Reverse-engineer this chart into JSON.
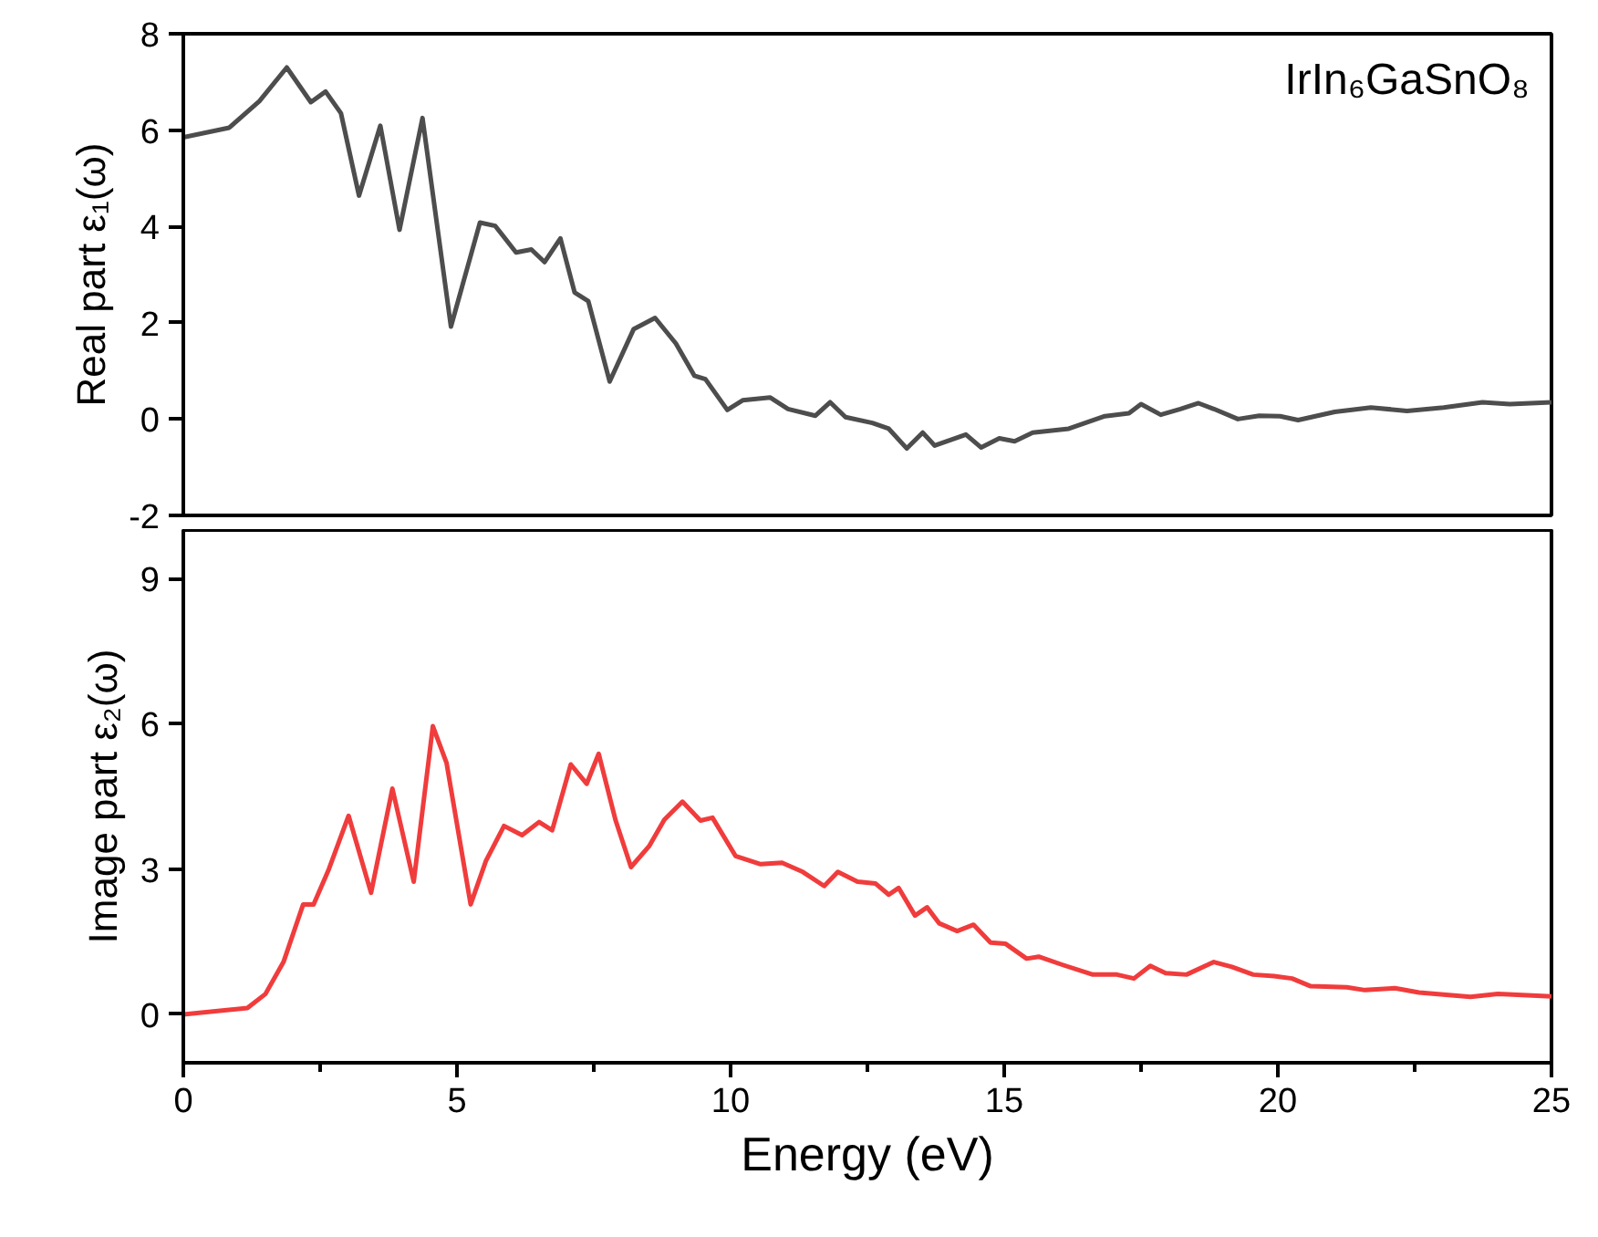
{
  "chart_data": [
    {
      "type": "line",
      "ylabel": "Real part ε₁(ω)",
      "annotations": [
        "IrIn₆GaSnO₈"
      ],
      "xlim": [
        0,
        25
      ],
      "xticks": [
        0,
        5,
        10,
        15,
        20,
        25
      ],
      "ylim": [
        -2,
        8
      ],
      "yticks": [
        -2,
        0,
        2,
        4,
        6,
        8
      ],
      "tick_labels": "y",
      "grid": false,
      "series": [
        {
          "color": "#4d4d4d",
          "x": [
            0,
            0.84,
            1.39,
            1.89,
            2.33,
            2.6,
            2.88,
            3.21,
            3.6,
            3.95,
            4.37,
            4.89,
            5.42,
            5.7,
            6.08,
            6.36,
            6.6,
            6.89,
            7.15,
            7.4,
            7.79,
            8.23,
            8.62,
            9.0,
            9.34,
            9.54,
            9.94,
            10.22,
            10.72,
            11.05,
            11.55,
            11.82,
            12.1,
            12.59,
            12.89,
            13.22,
            13.51,
            13.73,
            14.3,
            14.58,
            14.91,
            15.19,
            15.52,
            16.18,
            16.84,
            17.28,
            17.5,
            17.86,
            18.22,
            18.55,
            18.83,
            19.27,
            19.66,
            20.04,
            20.37,
            21.04,
            21.7,
            22.36,
            23.03,
            23.74,
            24.24,
            25
          ],
          "values": [
            5.85,
            6.05,
            6.6,
            7.3,
            6.58,
            6.8,
            6.35,
            4.64,
            6.09,
            3.93,
            6.25,
            1.92,
            4.08,
            4.01,
            3.46,
            3.52,
            3.26,
            3.75,
            2.63,
            2.45,
            0.78,
            1.87,
            2.1,
            1.57,
            0.9,
            0.83,
            0.19,
            0.39,
            0.45,
            0.21,
            0.07,
            0.35,
            0.04,
            -0.08,
            -0.2,
            -0.61,
            -0.28,
            -0.55,
            -0.32,
            -0.59,
            -0.4,
            -0.46,
            -0.28,
            -0.2,
            0.06,
            0.12,
            0.31,
            0.09,
            0.21,
            0.33,
            0.21,
            0,
            0.07,
            0.06,
            -0.02,
            0.15,
            0.24,
            0.17,
            0.24,
            0.35,
            0.31,
            0.35
          ]
        }
      ]
    },
    {
      "type": "line",
      "xlabel": "Energy (eV)",
      "ylabel": "Image part ε₂(ω)",
      "xlim": [
        0,
        25
      ],
      "xticks": [
        0,
        5,
        10,
        15,
        20,
        25
      ],
      "ylim": [
        -1,
        10
      ],
      "yticks": [
        0,
        3,
        6,
        9
      ],
      "grid": false,
      "series": [
        {
          "color": "#f03c3c",
          "x": [
            0,
            1.17,
            1.5,
            1.83,
            2.19,
            2.38,
            2.66,
            3.02,
            3.43,
            3.82,
            4.21,
            4.56,
            4.81,
            5.25,
            5.53,
            5.86,
            6.19,
            6.5,
            6.74,
            7.08,
            7.37,
            7.59,
            7.9,
            8.18,
            8.51,
            8.79,
            9.12,
            9.45,
            9.67,
            10.09,
            10.55,
            10.94,
            11.32,
            11.71,
            11.96,
            12.32,
            12.65,
            12.89,
            13.07,
            13.37,
            13.59,
            13.81,
            14.14,
            14.44,
            14.75,
            15.02,
            15.41,
            15.63,
            16.07,
            16.62,
            17.06,
            17.37,
            17.67,
            17.95,
            18.33,
            18.83,
            19.16,
            19.55,
            19.93,
            20.26,
            20.6,
            21.26,
            21.59,
            22.14,
            22.58,
            23.52,
            24.02,
            25
          ],
          "values": [
            0,
            0.13,
            0.42,
            1.08,
            2.27,
            2.27,
            3.0,
            4.1,
            2.51,
            4.66,
            2.74,
            5.95,
            5.19,
            2.27,
            3.17,
            3.89,
            3.7,
            3.97,
            3.8,
            5.16,
            4.76,
            5.38,
            4.0,
            3.04,
            3.47,
            4.02,
            4.39,
            4.0,
            4.06,
            3.27,
            3.1,
            3.13,
            2.94,
            2.65,
            2.94,
            2.74,
            2.7,
            2.47,
            2.61,
            2.04,
            2.21,
            1.88,
            1.72,
            1.85,
            1.48,
            1.46,
            1.15,
            1.19,
            1.02,
            0.82,
            0.82,
            0.74,
            1.0,
            0.85,
            0.82,
            1.08,
            0.98,
            0.82,
            0.79,
            0.74,
            0.58,
            0.56,
            0.5,
            0.54,
            0.45,
            0.36,
            0.42,
            0.37
          ]
        }
      ]
    }
  ]
}
